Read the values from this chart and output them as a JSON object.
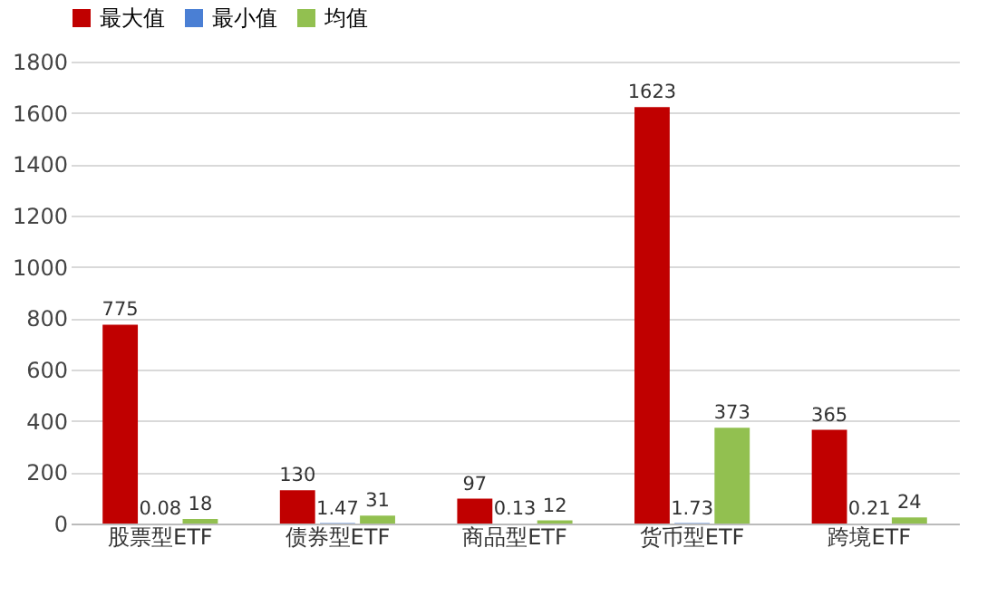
{
  "chart_data": {
    "type": "bar",
    "categories": [
      "股票型ETF",
      "债券型ETF",
      "商品型ETF",
      "货币型ETF",
      "跨境ETF"
    ],
    "series": [
      {
        "name": "最大值",
        "color": "#c00000",
        "values": [
          775,
          130,
          97,
          1623,
          365
        ]
      },
      {
        "name": "最小值",
        "color": "#4a7fd4",
        "values": [
          0.08,
          1.47,
          0.13,
          1.73,
          0.21
        ]
      },
      {
        "name": "均值",
        "color": "#92c050",
        "values": [
          18,
          31,
          12,
          373,
          24
        ]
      }
    ],
    "ylim": [
      0,
      1800
    ],
    "yticks": [
      0,
      200,
      400,
      600,
      800,
      1000,
      1200,
      1400,
      1600,
      1800
    ],
    "grid": "y",
    "legend": "top",
    "data_labels": true
  }
}
